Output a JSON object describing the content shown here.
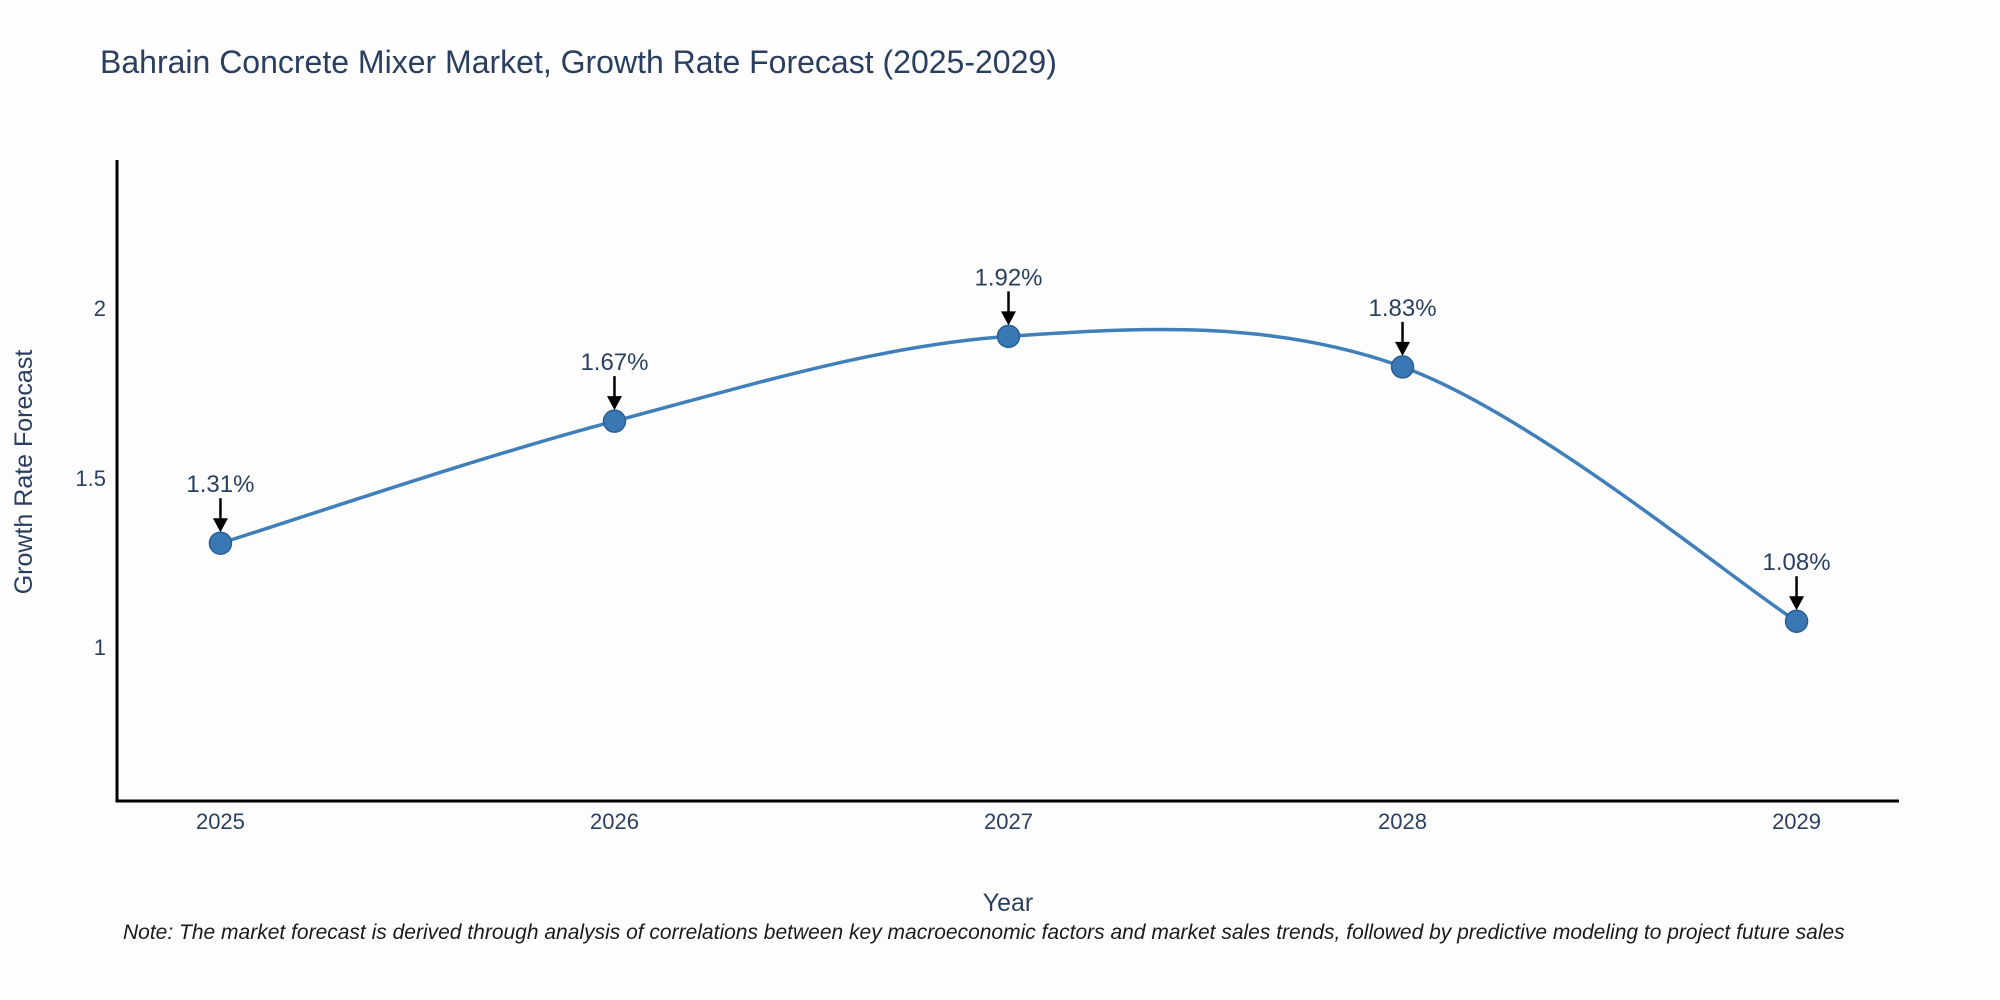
{
  "chart_data": {
    "type": "line",
    "title": "Bahrain Concrete Mixer Market, Growth Rate Forecast (2025-2029)",
    "xlabel": "Year",
    "ylabel": "Growth Rate Forecast",
    "x": [
      2025,
      2026,
      2027,
      2028,
      2029
    ],
    "y": [
      1.31,
      1.67,
      1.92,
      1.83,
      1.08
    ],
    "point_labels": [
      "1.31%",
      "1.67%",
      "1.92%",
      "1.83%",
      "1.08%"
    ],
    "xticks": [
      "2025",
      "2026",
      "2027",
      "2028",
      "2029"
    ],
    "xtick_values": [
      2025,
      2026,
      2027,
      2028,
      2029
    ],
    "yticks": [
      "1",
      "1.5",
      "2"
    ],
    "ytick_values": [
      1,
      1.5,
      2
    ],
    "xlim": [
      2024.74,
      2029.26
    ],
    "ylim": [
      0.55,
      2.44
    ],
    "grid": false,
    "legend": "none",
    "line_shape": "spline",
    "colors": {
      "line": "#3f7fba",
      "marker_fill": "#3a78b5",
      "marker_stroke": "#2a5f94",
      "axis": "#000000",
      "annotation_arrow": "#000000",
      "text": "#2a3f5f"
    }
  },
  "note": {
    "text": "Note: The market forecast is derived through analysis of correlations between key macroeconomic factors and market sales trends, followed by predictive modeling to project future sales"
  }
}
